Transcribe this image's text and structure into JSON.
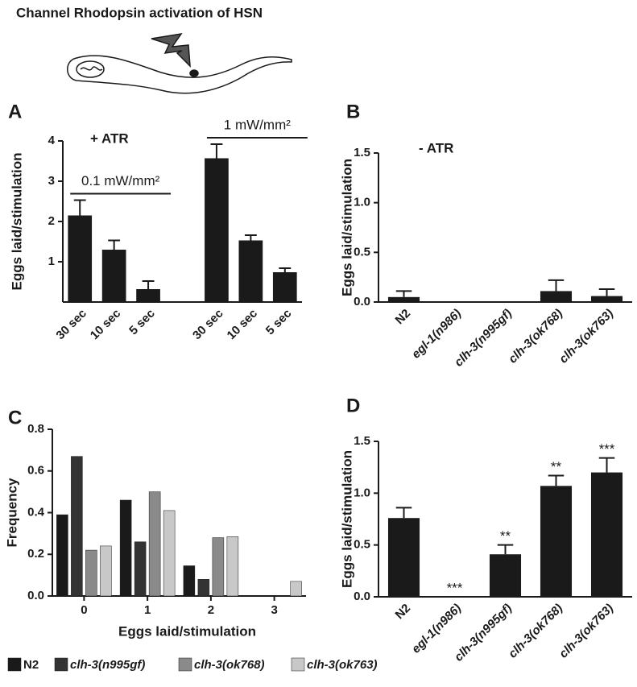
{
  "title": "Channel Rhodopsin activation of HSN",
  "chart_data": [
    {
      "type": "bar",
      "panel": "A",
      "ylabel": "Eggs laid/stimulation",
      "annotation": "+ ATR",
      "ylim": [
        0,
        4
      ],
      "yticks": [
        1,
        2,
        3,
        4
      ],
      "color": "#1a1a1a",
      "groups": [
        {
          "label": "0.1 mW/mm²",
          "categories": [
            "30 sec",
            "10 sec",
            "5 sec"
          ],
          "values": [
            2.15,
            1.3,
            0.32
          ],
          "errors": [
            0.38,
            0.23,
            0.2
          ]
        },
        {
          "label": "1 mW/mm²",
          "categories": [
            "30 sec",
            "10 sec",
            "5 sec"
          ],
          "values": [
            3.57,
            1.53,
            0.74
          ],
          "errors": [
            0.35,
            0.13,
            0.1
          ]
        }
      ]
    },
    {
      "type": "bar",
      "panel": "B",
      "ylabel": "Eggs laid/stimulation",
      "annotation": "- ATR",
      "ylim": [
        0,
        1.5
      ],
      "yticks": [
        {
          "value": 0,
          "label": "0.0"
        },
        {
          "value": 0.5,
          "label": "0.5"
        },
        {
          "value": 1,
          "label": "1.0"
        },
        {
          "value": 1.5,
          "label": "1.5"
        }
      ],
      "color": "#1a1a1a",
      "categories": [
        "N2",
        "egl-1(n986)",
        "clh-3(n995gf)",
        "clh-3(ok768)",
        "clh-3(ok763)"
      ],
      "values": [
        0.05,
        0,
        0,
        0.11,
        0.06
      ],
      "errors": [
        0.06,
        0,
        0,
        0.11,
        0.07
      ]
    },
    {
      "type": "grouped_bar",
      "panel": "C",
      "ylabel": "Frequency",
      "xlabel": "Eggs laid/stimulation",
      "ylim": [
        0,
        0.8
      ],
      "yticks": [
        {
          "value": 0,
          "label": "0.0"
        },
        0.2,
        0.4,
        0.6,
        0.8
      ],
      "categories": [
        0,
        1,
        2,
        3
      ],
      "series": [
        {
          "name": "N2",
          "color": "#1a1a1a",
          "values": [
            0.39,
            0.46,
            0.145,
            0
          ]
        },
        {
          "name": "clh-3(n995gf)",
          "color": "#333333",
          "values": [
            0.67,
            0.26,
            0.08,
            0
          ]
        },
        {
          "name": "clh-3(ok768)",
          "color": "#8a8a8a",
          "values": [
            0.22,
            0.5,
            0.28,
            0
          ]
        },
        {
          "name": "clh-3(ok763)",
          "color": "#c8c8c8",
          "values": [
            0.24,
            0.41,
            0.285,
            0.07
          ]
        }
      ]
    },
    {
      "type": "bar",
      "panel": "D",
      "ylabel": "Eggs laid/stimulation",
      "ylim": [
        0,
        1.5
      ],
      "yticks": [
        {
          "value": 0,
          "label": "0.0"
        },
        {
          "value": 0.5,
          "label": "0.5"
        },
        {
          "value": 1,
          "label": "1.0"
        },
        {
          "value": 1.5,
          "label": "1.5"
        }
      ],
      "color": "#1a1a1a",
      "categories": [
        "N2",
        "egl-1(n986)",
        "clh-3(n995gf)",
        "clh-3(ok768)",
        "clh-3(ok763)"
      ],
      "values": [
        0.76,
        0,
        0.41,
        1.07,
        1.2
      ],
      "errors": [
        0.1,
        0,
        0.09,
        0.1,
        0.14
      ],
      "significance": [
        null,
        "***",
        "**",
        "**",
        "***"
      ]
    }
  ]
}
